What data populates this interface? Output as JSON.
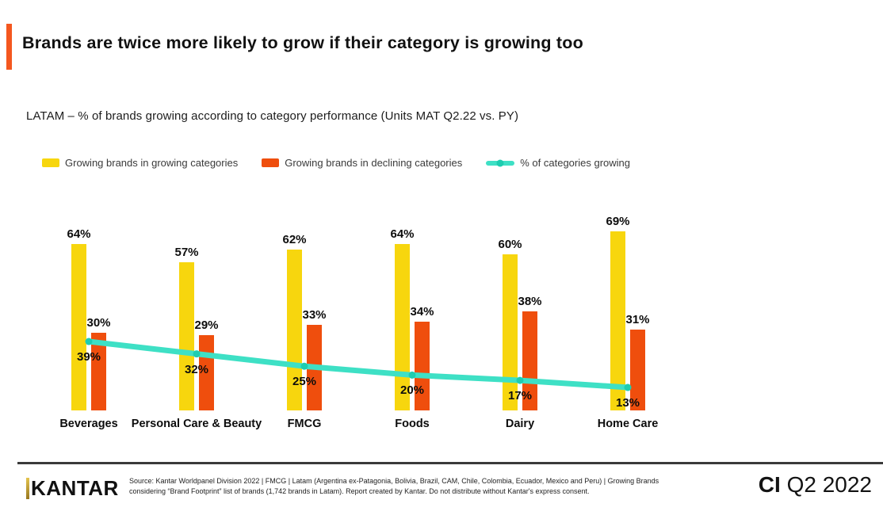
{
  "page": {
    "title": "Brands are twice more likely to grow if their category is growing too",
    "subtitle": "LATAM – % of brands growing according to category performance (Units MAT Q2.22 vs. PY)",
    "accent_color": "#F4571F"
  },
  "legend": [
    {
      "label": "Growing brands in growing categories",
      "color": "#F7D60E",
      "type": "box"
    },
    {
      "label": "Growing brands in declining categories",
      "color": "#EF4E0D",
      "type": "box"
    },
    {
      "label": "% of categories growing",
      "color": "#3EE0C5",
      "dot_color": "#1ECDB0",
      "type": "line"
    }
  ],
  "chart_data": {
    "type": "bar",
    "title": "LATAM – % of brands growing according to category performance (Units MAT Q2.22 vs. PY)",
    "categories": [
      "Beverages",
      "Personal Care & Beauty",
      "FMCG",
      "Foods",
      "Dairy",
      "Home Care"
    ],
    "series": [
      {
        "name": "Growing brands in growing categories",
        "type": "bar",
        "color": "#F7D60E",
        "values": [
          64,
          57,
          62,
          64,
          60,
          69
        ]
      },
      {
        "name": "Growing brands in declining categories",
        "type": "bar",
        "color": "#EF4E0D",
        "values": [
          30,
          29,
          33,
          34,
          38,
          31
        ]
      },
      {
        "name": "% of categories growing",
        "type": "line",
        "color": "#3EE0C5",
        "dot_color": "#1ECDB0",
        "values": [
          39,
          32,
          25,
          20,
          17,
          13
        ]
      }
    ],
    "value_suffix": "%",
    "xlabel": "",
    "ylabel": "",
    "grid": false,
    "legend_position": "top-left"
  },
  "footer": {
    "logo_text": "KANTAR",
    "source": "Source: Kantar Worldpanel Division 2022 | FMCG | Latam (Argentina ex-Patagonia, Bolivia, Brazil, CAM, Chile, Colombia, Ecuador, Mexico and Peru) | Growing Brands considering “Brand Footprint” list of brands (1,742 brands in Latam). Report created by Kantar. Do not distribute without Kantar's express consent.",
    "edition_bold": "CI",
    "edition_rest": " Q2 2022"
  }
}
